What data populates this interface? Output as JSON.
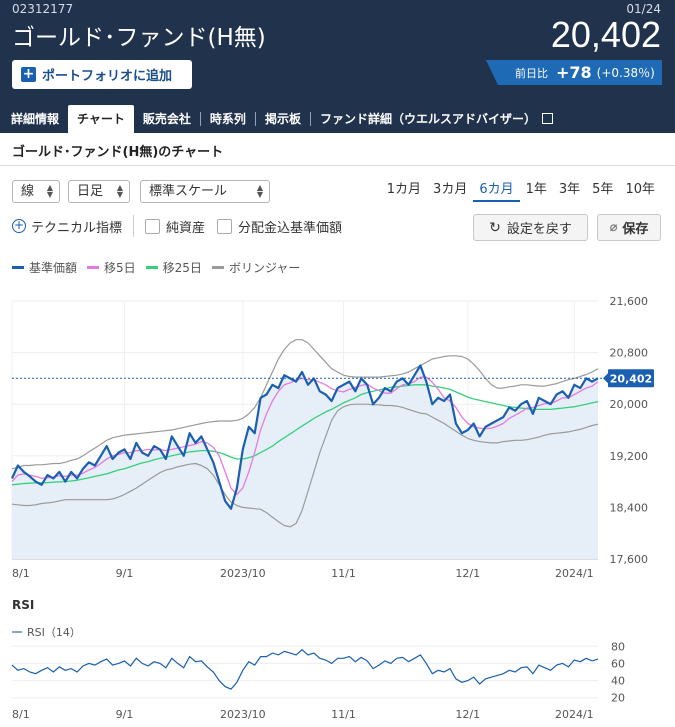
{
  "header": {
    "code": "02312177",
    "fund_name": "ゴールド･ファンド(H無)",
    "date": "01/24",
    "price": "20,402",
    "add_portfolio": "ポートフォリオに追加",
    "change_label": "前日比",
    "change_value": "+78",
    "change_pct": "(+0.38％)"
  },
  "tabs": [
    {
      "label": "詳細情報",
      "active": false
    },
    {
      "label": "チャート",
      "active": true
    },
    {
      "label": "販売会社",
      "active": false
    },
    {
      "label": "時系列",
      "active": false
    },
    {
      "label": "掲示板",
      "active": false
    },
    {
      "label": "ファンド詳細（ウエルスアドバイザー）",
      "active": false
    }
  ],
  "section_title": "ゴールド･ファンド(H無)のチャート",
  "controls": {
    "chart_type": "線",
    "interval": "日足",
    "scale": "標準スケール",
    "periods": [
      "1カ月",
      "3カ月",
      "6カ月",
      "1年",
      "3年",
      "5年",
      "10年"
    ],
    "active_period": "6カ月",
    "technical": "テクニカル指標",
    "net_assets": "純資産",
    "dividend": "分配金込基準価額",
    "reset": "設定を戻す",
    "save": "保存"
  },
  "legend": [
    {
      "label": "基準価額",
      "color": "#1a5fb0"
    },
    {
      "label": "移5日",
      "color": "#e57be0"
    },
    {
      "label": "移25日",
      "color": "#35d07a"
    },
    {
      "label": "ボリンジャー",
      "color": "#9a9a9a"
    }
  ],
  "rsi": {
    "title": "RSI",
    "legend": "RSI（14）",
    "y_ticks": [
      "80",
      "60",
      "40",
      "20"
    ]
  },
  "chart_data": {
    "type": "line",
    "x_ticks": [
      "8/1",
      "9/1",
      "2023/10",
      "11/1",
      "12/1",
      "2024/1"
    ],
    "y_ticks": [
      "21,600",
      "20,800",
      "20,000",
      "19,200",
      "18,400",
      "17,600"
    ],
    "ylim": [
      17600,
      21600
    ],
    "last_label": "20,402",
    "series": [
      {
        "name": "基準価額",
        "values": [
          18850,
          19050,
          18950,
          18880,
          18800,
          18750,
          18900,
          18850,
          18950,
          18800,
          18950,
          18850,
          19000,
          19100,
          19050,
          19200,
          19350,
          19150,
          19250,
          19300,
          19150,
          19400,
          19250,
          19200,
          19350,
          19300,
          19150,
          19500,
          19350,
          19200,
          19550,
          19400,
          19500,
          19300,
          19100,
          18800,
          18500,
          18380,
          18700,
          19300,
          19650,
          19550,
          20100,
          20150,
          20300,
          20250,
          20450,
          20400,
          20350,
          20500,
          20300,
          20400,
          20200,
          20150,
          20050,
          20250,
          20300,
          20350,
          20200,
          20400,
          20300,
          20000,
          20100,
          20250,
          20200,
          20350,
          20400,
          20300,
          20450,
          20600,
          20350,
          20000,
          20100,
          20050,
          20150,
          19700,
          19550,
          19600,
          19700,
          19500,
          19650,
          19700,
          19750,
          19800,
          19950,
          19900,
          20000,
          20050,
          19850,
          20100,
          20050,
          20000,
          20150,
          20200,
          20100,
          20300,
          20250,
          20400,
          20350,
          20402
        ]
      },
      {
        "name": "移5日",
        "values": [
          18800,
          18900,
          18920,
          18900,
          18880,
          18850,
          18860,
          18870,
          18890,
          18880,
          18900,
          18900,
          18930,
          18980,
          19020,
          19080,
          19150,
          19200,
          19220,
          19250,
          19250,
          19280,
          19280,
          19300,
          19290,
          19300,
          19280,
          19300,
          19320,
          19340,
          19360,
          19380,
          19420,
          19400,
          19330,
          19200,
          18950,
          18700,
          18600,
          18700,
          18950,
          19250,
          19600,
          19850,
          20050,
          20200,
          20300,
          20330,
          20380,
          20400,
          20380,
          20380,
          20340,
          20300,
          20240,
          20210,
          20190,
          20230,
          20260,
          20290,
          20310,
          20250,
          20210,
          20170,
          20170,
          20240,
          20300,
          20320,
          20350,
          20420,
          20420,
          20340,
          20230,
          20100,
          20050,
          19950,
          19800,
          19700,
          19650,
          19630,
          19620,
          19630,
          19660,
          19700,
          19780,
          19830,
          19880,
          19940,
          19950,
          19980,
          20010,
          20010,
          20050,
          20100,
          20100,
          20150,
          20200,
          20250,
          20280,
          20350
        ]
      },
      {
        "name": "移25日",
        "values": [
          18750,
          18760,
          18770,
          18775,
          18780,
          18780,
          18785,
          18790,
          18795,
          18800,
          18810,
          18820,
          18840,
          18860,
          18880,
          18900,
          18920,
          18950,
          18980,
          19000,
          19030,
          19060,
          19090,
          19110,
          19140,
          19160,
          19180,
          19200,
          19220,
          19240,
          19260,
          19270,
          19280,
          19280,
          19270,
          19250,
          19220,
          19180,
          19150,
          19150,
          19170,
          19200,
          19250,
          19300,
          19350,
          19420,
          19480,
          19540,
          19600,
          19660,
          19720,
          19780,
          19830,
          19880,
          19920,
          19970,
          20020,
          20060,
          20100,
          20150,
          20180,
          20200,
          20220,
          20240,
          20260,
          20270,
          20280,
          20290,
          20300,
          20300,
          20300,
          20280,
          20270,
          20250,
          20230,
          20190,
          20150,
          20110,
          20080,
          20060,
          20040,
          20020,
          20000,
          19980,
          19960,
          19950,
          19940,
          19930,
          19920,
          19920,
          19920,
          19920,
          19930,
          19940,
          19950,
          19960,
          19980,
          20000,
          20020,
          20040
        ]
      },
      {
        "name": "ボリンジャー上",
        "values": [
          19000,
          19020,
          19050,
          19050,
          19060,
          19060,
          19070,
          19080,
          19080,
          19100,
          19130,
          19150,
          19200,
          19260,
          19320,
          19380,
          19440,
          19480,
          19500,
          19520,
          19530,
          19540,
          19550,
          19560,
          19570,
          19580,
          19590,
          19600,
          19620,
          19640,
          19660,
          19680,
          19700,
          19720,
          19730,
          19740,
          19740,
          19740,
          19750,
          19780,
          19850,
          19950,
          20100,
          20300,
          20500,
          20700,
          20850,
          20950,
          21000,
          21000,
          20950,
          20850,
          20750,
          20650,
          20550,
          20500,
          20450,
          20430,
          20420,
          20420,
          20420,
          20420,
          20420,
          20430,
          20440,
          20450,
          20470,
          20500,
          20550,
          20600,
          20650,
          20700,
          20720,
          20740,
          20750,
          20750,
          20740,
          20700,
          20620,
          20520,
          20400,
          20300,
          20250,
          20250,
          20270,
          20280,
          20300,
          20300,
          20290,
          20280,
          20280,
          20300,
          20320,
          20350,
          20380,
          20400,
          20430,
          20460,
          20500,
          20550
        ]
      },
      {
        "name": "ボリンジャー下",
        "values": [
          18450,
          18440,
          18430,
          18430,
          18440,
          18460,
          18470,
          18480,
          18500,
          18520,
          18520,
          18520,
          18520,
          18520,
          18520,
          18520,
          18520,
          18530,
          18560,
          18600,
          18650,
          18700,
          18760,
          18820,
          18880,
          18940,
          18980,
          19000,
          19030,
          19050,
          19070,
          19080,
          19050,
          19000,
          18900,
          18750,
          18600,
          18480,
          18430,
          18400,
          18390,
          18380,
          18370,
          18320,
          18250,
          18180,
          18120,
          18100,
          18150,
          18350,
          18650,
          18950,
          19250,
          19500,
          19750,
          19900,
          19960,
          19990,
          20000,
          20000,
          20000,
          19990,
          19990,
          19980,
          19980,
          19970,
          19950,
          19920,
          19890,
          19860,
          19850,
          19800,
          19750,
          19700,
          19640,
          19580,
          19520,
          19470,
          19440,
          19420,
          19410,
          19400,
          19400,
          19420,
          19430,
          19440,
          19440,
          19450,
          19470,
          19490,
          19520,
          19540,
          19550,
          19560,
          19570,
          19590,
          19610,
          19640,
          19670,
          19690
        ]
      }
    ]
  },
  "rsi_data": {
    "type": "line",
    "ylim": [
      15,
      85
    ],
    "values": [
      58,
      52,
      54,
      50,
      48,
      52,
      55,
      50,
      56,
      52,
      54,
      50,
      57,
      60,
      58,
      62,
      65,
      58,
      60,
      63,
      57,
      66,
      60,
      57,
      62,
      60,
      55,
      66,
      60,
      55,
      68,
      62,
      63,
      56,
      50,
      40,
      33,
      30,
      38,
      52,
      62,
      58,
      68,
      68,
      72,
      70,
      74,
      72,
      70,
      76,
      70,
      72,
      66,
      64,
      60,
      66,
      66,
      68,
      62,
      67,
      63,
      54,
      58,
      63,
      60,
      66,
      67,
      62,
      66,
      70,
      60,
      48,
      52,
      50,
      54,
      42,
      38,
      40,
      44,
      36,
      42,
      44,
      46,
      48,
      52,
      50,
      55,
      56,
      48,
      58,
      55,
      52,
      58,
      60,
      56,
      64,
      62,
      66,
      63,
      65
    ]
  }
}
